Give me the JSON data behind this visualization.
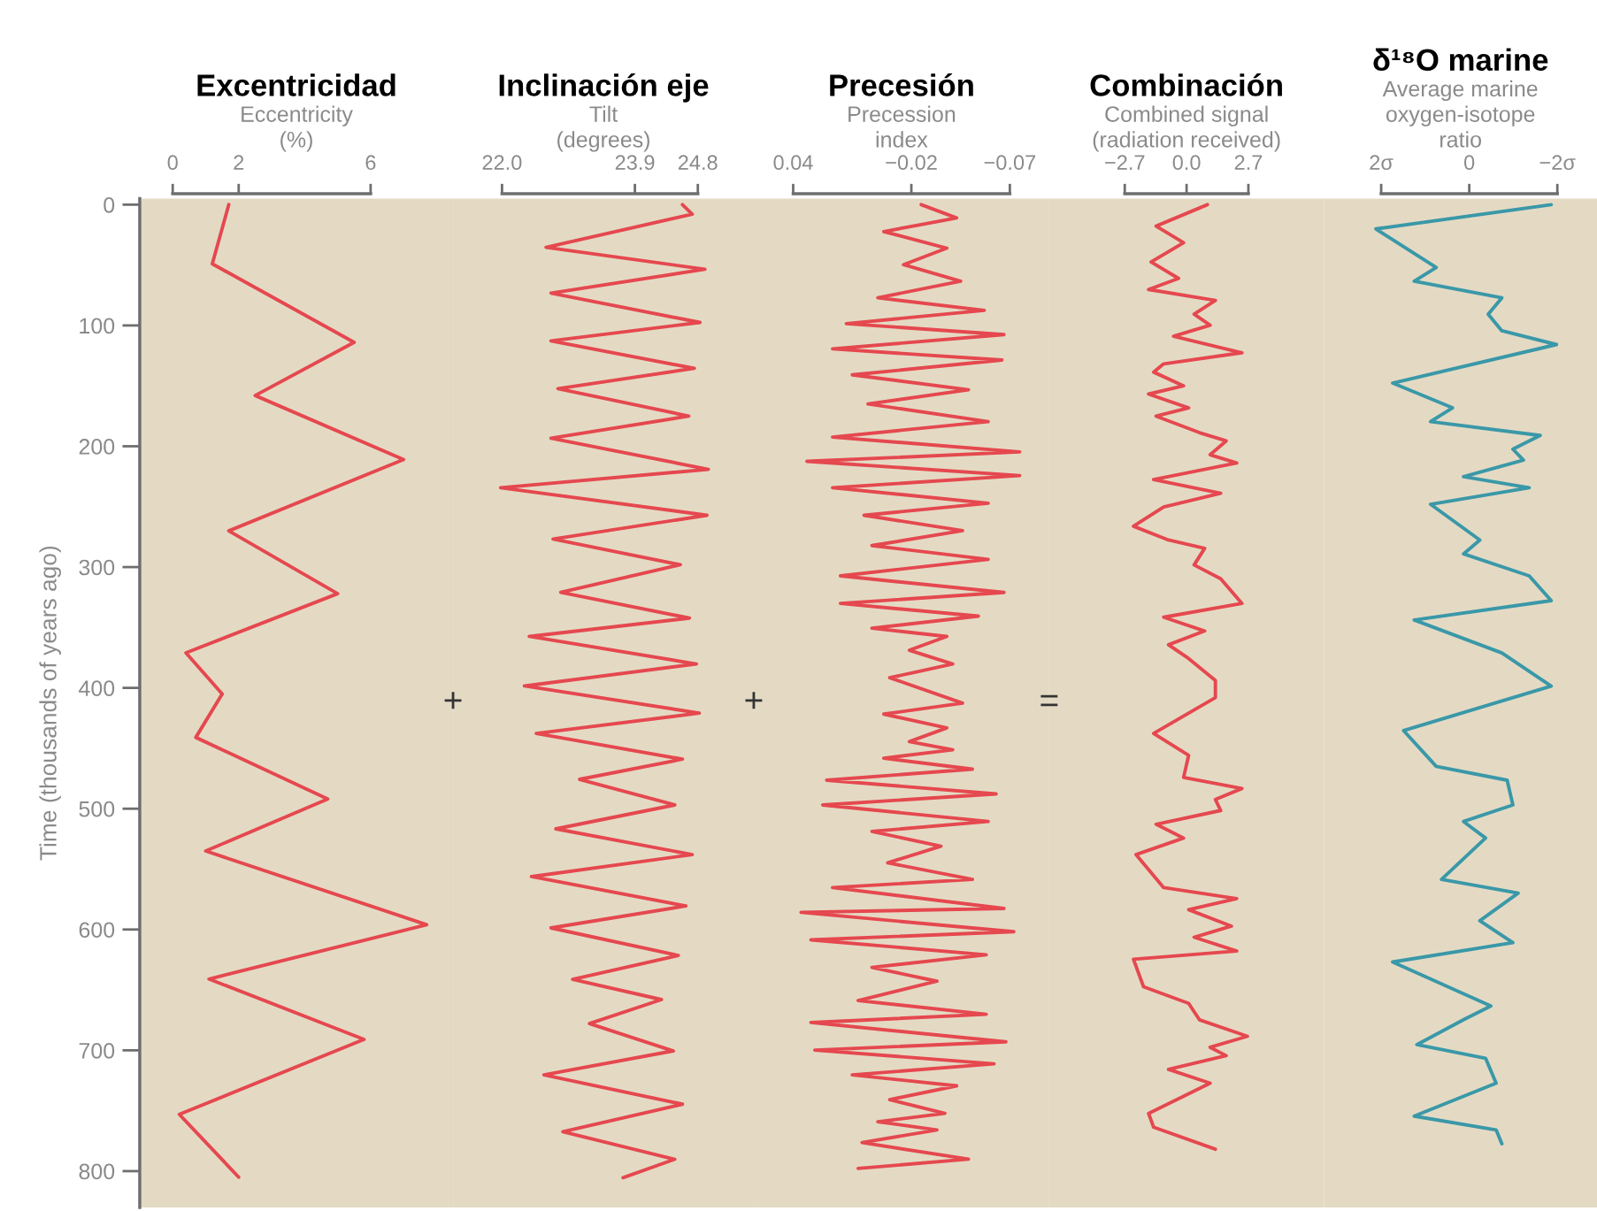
{
  "chart_data": [
    {
      "type": "line",
      "title": "Excentricidad",
      "xlabel": "Eccentricity\n(%)",
      "ylabel": "Time (thousands of years ago)",
      "xlim": [
        -1,
        8.5
      ],
      "xticks": [
        0,
        2,
        6
      ],
      "ylim": [
        830,
        -5
      ],
      "yticks": [
        0,
        100,
        200,
        300,
        400,
        500,
        600,
        700,
        800
      ],
      "annotations": [
        "+"
      ],
      "series": [
        {
          "color": "#e5484f",
          "x": [
            1.7,
            1.2,
            5.5,
            2.5,
            7.0,
            1.7,
            5.0,
            0.4,
            1.5,
            0.7,
            4.7,
            1.0,
            7.7,
            1.1,
            5.8,
            0.2,
            2.0
          ],
          "values": [
            0,
            49,
            114,
            158,
            211,
            270,
            322,
            371,
            405,
            441,
            492,
            535,
            596,
            641,
            691,
            753,
            805
          ]
        }
      ]
    },
    {
      "type": "line",
      "title": "Inclinación eje",
      "xlabel": "Tilt\n(degrees)",
      "xlim": [
        21.3,
        25.6
      ],
      "xticks": [
        {
          "value": 22.0,
          "label": "22.0"
        },
        23.9,
        24.8
      ],
      "ylim": [
        830,
        -5
      ],
      "tick_labels": "x",
      "annotations": [
        "+"
      ],
      "series": [
        {
          "color": "#e5484f",
          "x": [
            24.58,
            24.72,
            22.63,
            24.9,
            22.7,
            24.83,
            22.7,
            24.75,
            22.8,
            24.67,
            22.7,
            24.95,
            21.98,
            24.93,
            22.73,
            24.55,
            22.84,
            24.68,
            22.39,
            24.78,
            22.32,
            24.82,
            22.49,
            24.58,
            23.11,
            24.47,
            22.77,
            24.72,
            22.42,
            24.63,
            22.7,
            24.52,
            23.01,
            24.28,
            23.25,
            24.45,
            22.6,
            24.58,
            22.87,
            24.47,
            23.73
          ],
          "values": [
            0,
            7.9,
            35.3,
            53.5,
            73.2,
            97.5,
            112.8,
            135.5,
            152.3,
            175.0,
            193.3,
            219.1,
            234.3,
            257.1,
            276.8,
            298.1,
            320.9,
            342.2,
            357.4,
            380.2,
            398.4,
            420.9,
            437.7,
            459.0,
            475.7,
            496.9,
            516.7,
            538.0,
            556.2,
            580.5,
            598.7,
            621.5,
            641.3,
            658.0,
            677.8,
            700.5,
            720.3,
            744.6,
            767.4,
            790.2,
            805.4
          ]
        }
      ]
    },
    {
      "type": "line",
      "title": "Precesión",
      "xlabel": "Precession\nindex",
      "xlim": [
        0.06,
        -0.09
      ],
      "xticks": [
        0.04,
        {
          "value": -0.02,
          "label": "−0.02"
        },
        {
          "value": -0.07,
          "label": "−0.07"
        }
      ],
      "ylim": [
        830,
        -5
      ],
      "tick_labels": "x",
      "annotations": [
        "="
      ],
      "series": [
        {
          "color": "#e5484f",
          "x": [
            -0.025,
            -0.043,
            -0.006,
            -0.038,
            -0.016,
            -0.045,
            -0.003,
            -0.057,
            0.013,
            -0.067,
            0.02,
            -0.066,
            0.01,
            -0.049,
            0.002,
            -0.059,
            0.02,
            -0.075,
            0.033,
            -0.075,
            0.02,
            -0.059,
            0.004,
            -0.046,
            0.0,
            -0.059,
            0.016,
            -0.067,
            0.016,
            -0.054,
            0.0,
            -0.038,
            -0.019,
            -0.041,
            -0.009,
            -0.046,
            -0.006,
            -0.038,
            -0.019,
            -0.041,
            -0.006,
            -0.051,
            0.023,
            -0.063,
            0.025,
            -0.059,
            0.0,
            -0.035,
            -0.008,
            -0.051,
            0.02,
            -0.067,
            0.036,
            -0.072,
            0.031,
            -0.058,
            0.0,
            -0.033,
            0.007,
            -0.058,
            0.031,
            -0.068,
            0.029,
            -0.062,
            0.01,
            -0.043,
            -0.009,
            -0.037,
            -0.003,
            -0.033,
            0.005,
            -0.049,
            0.007
          ],
          "values": [
            0,
            11.0,
            22.3,
            36.0,
            49.7,
            63.4,
            77.1,
            87.5,
            98.5,
            107.6,
            119.4,
            128.6,
            140.9,
            153.2,
            165.0,
            179.6,
            192.4,
            204.7,
            212.5,
            224.3,
            234.3,
            247.1,
            257.1,
            269.9,
            282.2,
            293.6,
            307.3,
            321.0,
            330.1,
            340.6,
            350.6,
            357.4,
            368.8,
            380.2,
            391.6,
            412.6,
            421.7,
            433.1,
            444.5,
            451.3,
            458.2,
            467.3,
            476.4,
            487.8,
            496.9,
            510.6,
            518.8,
            531.1,
            544.8,
            558.5,
            565.3,
            582.6,
            585.8,
            601.8,
            608.6,
            620.9,
            631.4,
            642.8,
            658.8,
            670.2,
            677.0,
            693.0,
            699.8,
            711.2,
            720.3,
            729.4,
            740.8,
            752.2,
            759.1,
            765.9,
            776.4,
            790.1,
            797.8
          ]
        }
      ]
    },
    {
      "type": "line",
      "title": "Combinación",
      "xlabel": "Combined signal\n(radiation received)",
      "xlim": [
        -6,
        6
      ],
      "xticks": [
        {
          "value": -2.7,
          "label": "−2.7"
        },
        {
          "value": 0.0,
          "label": "0.0"
        },
        2.7
      ],
      "ylim": [
        830,
        -5
      ],
      "tick_labels": "x",
      "series": [
        {
          "color": "#e5484f",
          "x": [
            0.91,
            -1.33,
            -0.13,
            -1.55,
            -0.35,
            -1.66,
            1.26,
            0.33,
            1.03,
            -0.57,
            2.42,
            -1.0,
            -1.44,
            -0.13,
            -1.66,
            0.09,
            -1.33,
            0.56,
            1.73,
            1.03,
            2.19,
            -1.44,
            1.49,
            -1.0,
            -2.32,
            -0.79,
            0.79,
            0.33,
            1.49,
            2.42,
            -1.0,
            0.79,
            -0.79,
            0.09,
            1.26,
            1.26,
            -1.44,
            0.09,
            -0.13,
            2.42,
            1.26,
            1.49,
            -1.33,
            -0.13,
            -2.21,
            -1.0,
            2.19,
            0.09,
            1.96,
            0.33,
            2.19,
            -2.32,
            -1.88,
            0.09,
            0.56,
            2.66,
            1.03,
            1.73,
            -0.79,
            1.03,
            -1.66,
            -1.44,
            1.26
          ],
          "values": [
            0,
            17.8,
            31.5,
            47.4,
            61.1,
            70.2,
            79.3,
            90.7,
            99.8,
            109.0,
            122.6,
            131.8,
            138.6,
            150.0,
            156.8,
            168.2,
            175.1,
            188.7,
            195.6,
            207.0,
            213.8,
            227.5,
            238.9,
            250.3,
            266.2,
            277.6,
            284.5,
            298.2,
            309.6,
            330.1,
            341.5,
            352.9,
            364.3,
            375.7,
            393.9,
            408.0,
            437.7,
            455.9,
            474.1,
            483.3,
            492.4,
            501.5,
            512.9,
            524.3,
            538.0,
            565.3,
            574.4,
            583.6,
            597.2,
            606.4,
            617.8,
            624.6,
            647.4,
            661.1,
            674.7,
            688.4,
            697.5,
            704.4,
            715.8,
            727.2,
            752.2,
            763.6,
            781.9
          ]
        }
      ]
    },
    {
      "type": "line",
      "title": "δ¹⁸O marine",
      "xlabel": "Average marine\noxygen-isotope\nratio",
      "xlim": [
        3.3,
        -2.9
      ],
      "xticks": [
        {
          "value": 2,
          "label": "2σ"
        },
        0,
        {
          "value": -2,
          "label": "−2σ"
        }
      ],
      "ylim": [
        830,
        -5
      ],
      "tick_labels": "x",
      "series": [
        {
          "color": "#3a98a8",
          "x": [
            -1.86,
            2.12,
            0.75,
            1.25,
            -0.74,
            -0.43,
            -0.74,
            -1.98,
            1.74,
            0.38,
            0.88,
            -1.61,
            -0.99,
            -1.23,
            0.13,
            -1.36,
            0.88,
            -0.24,
            0.13,
            -1.36,
            -1.86,
            1.25,
            -0.74,
            -1.86,
            1.49,
            0.75,
            -0.86,
            -0.99,
            0.13,
            -0.37,
            0.63,
            -1.11,
            -0.24,
            -0.99,
            1.74,
            -0.49,
            0.13,
            1.19,
            -0.37,
            -0.61,
            1.25,
            -0.61,
            -0.74
          ],
          "values": [
            0,
            20.1,
            52.0,
            63.4,
            77.1,
            90.7,
            104.4,
            115.8,
            147.7,
            168.2,
            179.6,
            191.0,
            202.4,
            211.5,
            225.2,
            234.3,
            248.0,
            277.6,
            289.1,
            307.3,
            327.8,
            343.8,
            371.1,
            398.5,
            435.4,
            465.0,
            476.4,
            496.9,
            510.6,
            524.3,
            558.5,
            569.9,
            592.7,
            610.9,
            626.9,
            663.3,
            674.7,
            695.3,
            706.6,
            727.2,
            754.5,
            765.9,
            777.3
          ]
        }
      ]
    }
  ]
}
